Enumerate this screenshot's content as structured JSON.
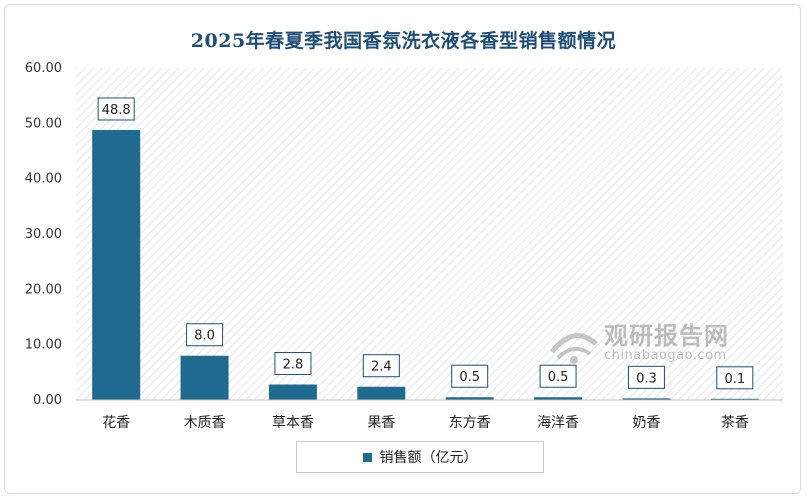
{
  "chart_data": {
    "type": "bar",
    "title": "2025年春夏季我国香氛洗衣液各香型销售额情况",
    "categories": [
      "花香",
      "木质香",
      "草本香",
      "果香",
      "东方香",
      "海洋香",
      "奶香",
      "茶香"
    ],
    "series": [
      {
        "name": "销售额（亿元）",
        "values": [
          48.8,
          8.0,
          2.8,
          2.4,
          0.5,
          0.5,
          0.3,
          0.1
        ],
        "color": "#1f6b8f"
      }
    ],
    "value_labels": [
      "48.8",
      "8.0",
      "2.8",
      "2.4",
      "0.5",
      "0.5",
      "0.3",
      "0.1"
    ],
    "ylim": [
      0,
      60
    ],
    "yticks": [
      "0.00",
      "10.00",
      "20.00",
      "30.00",
      "40.00",
      "50.00",
      "60.00"
    ],
    "grid": false,
    "legend": "bottom",
    "background": "diagonal-hatch"
  },
  "watermark": {
    "text_cn": "观研报告网",
    "text_en": "chinabaogao.com"
  },
  "colors": {
    "title": "#1f4e79",
    "bar": "#1f6b8f",
    "hatch": "#e6e6e6"
  }
}
